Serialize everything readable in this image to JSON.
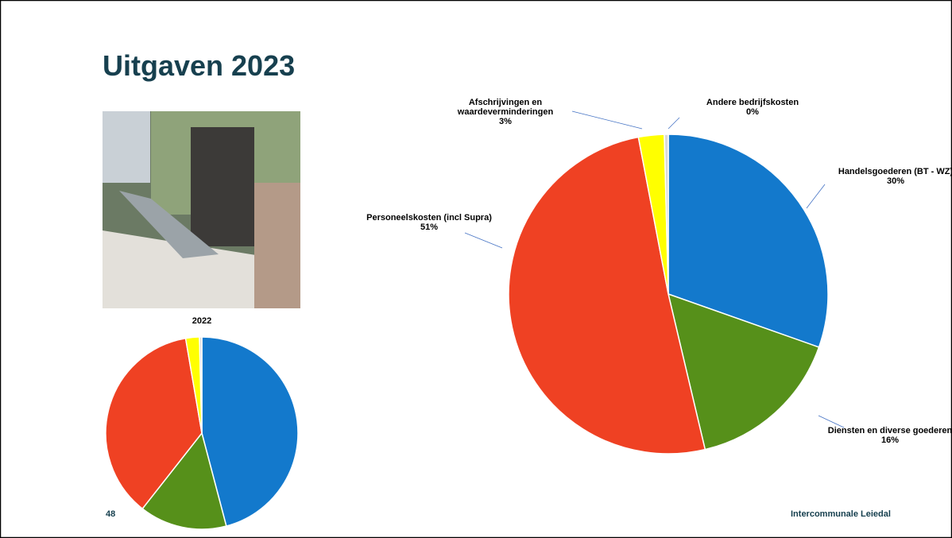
{
  "slide": {
    "title": "Uitgaven 2023",
    "page_number": "48",
    "footer": "Intercommunale Leiedal"
  },
  "chart_data": [
    {
      "type": "pie",
      "categories": [
        "Handelsgoederen (BT - WZ)",
        "Diensten en diverse goederen",
        "Personeelskosten (incl Supra)",
        "Afschrijvingen en waardeverminderingen",
        "Andere bedrijfskosten"
      ],
      "values": [
        30.4,
        15.9,
        50.7,
        2.6,
        0.4
      ],
      "value_labels": [
        "30%",
        "16%",
        "51%",
        "3%",
        "0%"
      ],
      "colors": [
        "#1379cc",
        "#56901a",
        "#ef4123",
        "#ffff00",
        "#d9d9d9"
      ]
    },
    {
      "type": "pie",
      "title": "2022",
      "values": [
        45.9,
        14.7,
        36.7,
        2.3,
        0.4
      ],
      "colors": [
        "#1379cc",
        "#56901a",
        "#ef4123",
        "#ffff00",
        "#d9d9d9"
      ]
    }
  ]
}
